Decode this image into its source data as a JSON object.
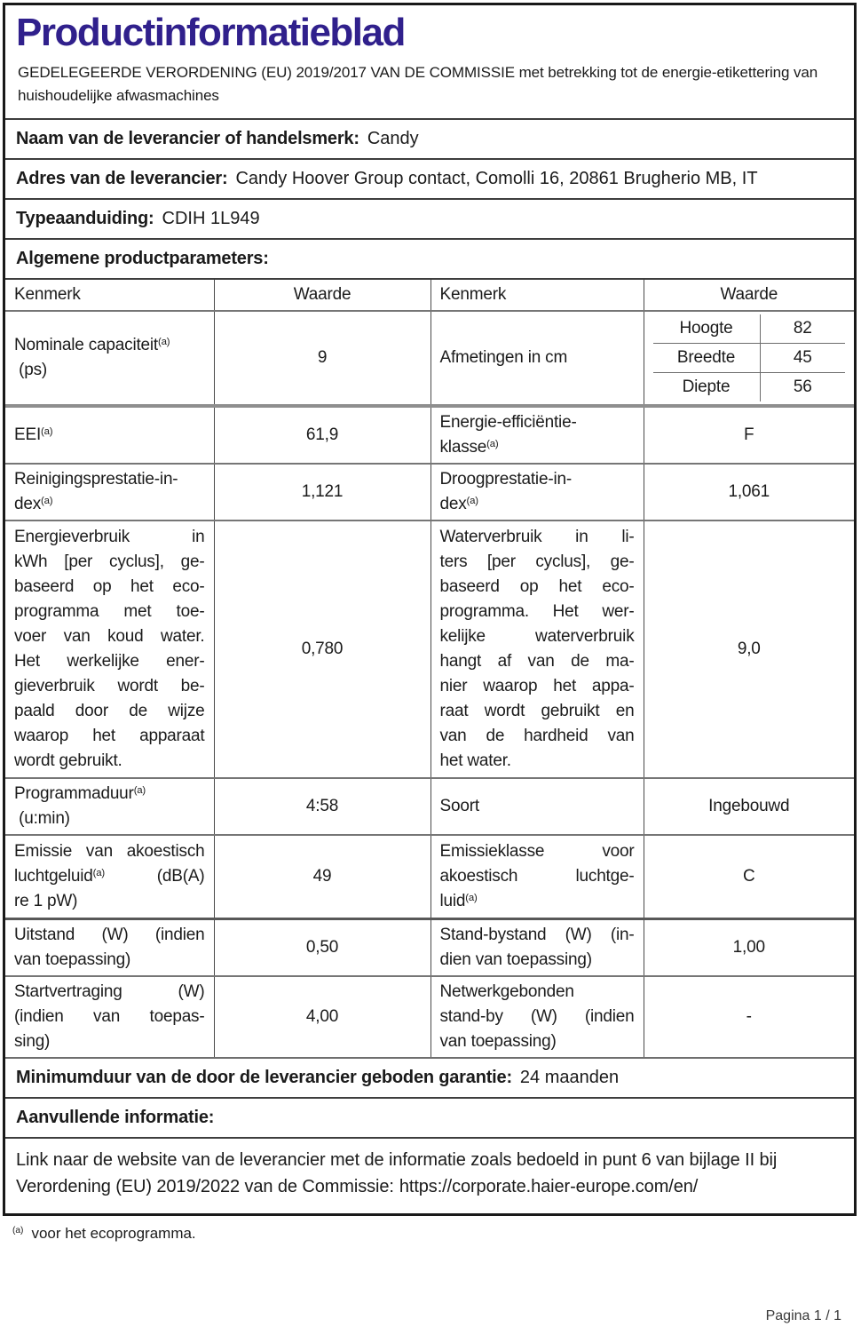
{
  "page": {
    "title": "Productinformatieblad",
    "subtitle": "GEDELEGEERDE VERORDENING (EU) 2019/2017 VAN DE COMMISSIE met betrekking tot de energie-etikettering van huishoudelijke afwasmachines",
    "footnote_marker": "(a)",
    "footnote_text": "voor het ecoprogramma.",
    "footer": "Pagina 1 / 1"
  },
  "colors": {
    "title": "#30208c",
    "text": "#1b1b1b",
    "border": "#191919"
  },
  "supplier": {
    "name_label": "Naam van de leverancier of handelsmerk:",
    "name_value": "Candy",
    "address_label": "Adres van de leverancier:",
    "address_value": "Candy Hoover Group contact, Comolli 16, 20861 Brugherio MB, IT",
    "type_label": "Typeaanduiding:",
    "type_value": "CDIH 1L949",
    "general_heading": "Algemene productparameters:"
  },
  "table": {
    "headers": [
      "Kenmerk",
      "Waarde",
      "Kenmerk",
      "Waarde"
    ]
  },
  "params": {
    "capacity": {
      "label": [
        "Nominale capaciteit^(a)",
        " (ps)"
      ],
      "value": "9"
    },
    "dimensions": {
      "label": "Afmetingen in cm",
      "items": [
        {
          "name": "Hoogte",
          "value": "82"
        },
        {
          "name": "Breedte",
          "value": "45"
        },
        {
          "name": "Diepte",
          "value": "56"
        }
      ]
    },
    "eei": {
      "label": "EEI^(a)",
      "value": "61,9"
    },
    "energy_class": {
      "label": [
        "Energie-efficiëntie-",
        "klasse^(a)"
      ],
      "value": "F"
    },
    "cleaning_index": {
      "label": [
        "Reinigingsprestatie-in-",
        "dex^(a)"
      ],
      "value": "1,121"
    },
    "drying_index": {
      "label": [
        "Droogprestatie-in-",
        "dex^(a)"
      ],
      "value": "1,061"
    },
    "energy_consumption": {
      "label": [
        "Energieverbruik in",
        "kWh [per cyclus], ge-",
        "baseerd op het eco-",
        "programma met toe-",
        "voer van koud water.",
        "Het werkelijke ener-",
        "gieverbruik wordt be-",
        "paald door de wijze",
        "waarop het apparaat",
        "wordt gebruikt."
      ],
      "value": "0,780"
    },
    "water_consumption": {
      "label": [
        "Waterverbruik in li-",
        "ters [per cyclus], ge-",
        "baseerd op het eco-",
        "programma. Het wer-",
        "kelijke waterverbruik",
        "hangt af van de ma-",
        "nier waarop het appa-",
        "raat wordt gebruikt en",
        "van de hardheid van",
        "het water."
      ],
      "value": "9,0"
    },
    "duration": {
      "label": [
        "Programmaduur^(a)",
        " (u:min)"
      ],
      "value": "4:58"
    },
    "type": {
      "label": "Soort",
      "value": "Ingebouwd"
    },
    "noise": {
      "label": [
        "Emissie van akoestisch",
        "luchtgeluid^(a) (dB(A)",
        "re 1 pW)"
      ],
      "value": "49"
    },
    "noise_class": {
      "label": [
        "Emissieklasse voor",
        "akoestisch luchtge-",
        "luid^(a)"
      ],
      "value": "C"
    },
    "off_mode": {
      "label": [
        "Uitstand (W) (indien",
        "van toepassing)"
      ],
      "value": "0,50"
    },
    "standby": {
      "label": [
        "Stand-bystand (W) (in-",
        "dien van toepassing)"
      ],
      "value": "1,00"
    },
    "delay_start": {
      "label": [
        "Startvertraging (W)",
        "(indien van toepas-",
        "sing)"
      ],
      "value": "4,00"
    },
    "networked_standby": {
      "label": [
        "Netwerkgebonden",
        "stand-by (W) (indien",
        "van toepassing)"
      ],
      "value": "-"
    }
  },
  "guarantee": {
    "label": "Minimumduur van de door de leverancier geboden garantie:",
    "value": "24 maanden"
  },
  "additional": {
    "heading": "Aanvullende informatie:",
    "link_text": "Link naar de website van de leverancier met de informatie zoals bedoeld in punt 6 van bijlage II bij Verordening (EU) 2019/2022 van de Commissie:",
    "link_url": "https://corporate.haier-europe.com/en/"
  }
}
